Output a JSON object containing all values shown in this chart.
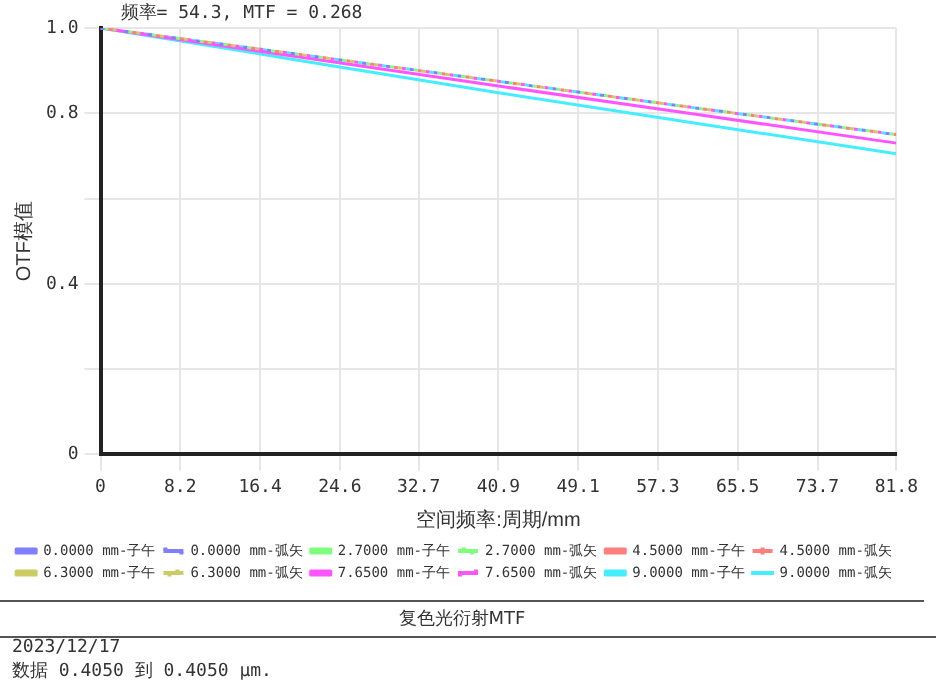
{
  "chart_data": {
    "type": "line",
    "title": "复色光衍射MTF",
    "xlabel": "空间频率:周期/mm",
    "ylabel": "OTF模值",
    "annotations": [
      "频率= 54.3, MTF = 0.268",
      "2023/12/17",
      "数据 0.4050 到 0.4050 µm."
    ],
    "x": [
      0,
      20.45,
      40.9,
      61.35,
      81.8
    ],
    "xlim": [
      0,
      81.8
    ],
    "xticks": [
      0,
      8.2,
      16.4,
      24.6,
      32.7,
      40.9,
      49.1,
      57.3,
      65.5,
      73.7,
      81.8
    ],
    "ylim": [
      0,
      1
    ],
    "yticks": [
      0,
      {
        "value": 0.2,
        "label": null
      },
      0.4,
      {
        "value": 0.6,
        "label": null
      },
      0.8,
      {
        "value": 1,
        "label": "1.0"
      }
    ],
    "grid": true,
    "legend": "bottom",
    "marker": "none",
    "series": [
      {
        "name": "0.0000 mm-子午",
        "color": "#7f7fff",
        "line_style": "solid",
        "values": [
          null,
          null,
          null,
          null,
          null
        ]
      },
      {
        "name": "0.0000 mm-弧矢",
        "color": "#7f7fff",
        "line_style": "dotted",
        "values": [
          1,
          0.938,
          0.875,
          0.812,
          0.75
        ]
      },
      {
        "name": "2.7000 mm-子午",
        "color": "#7fff7f",
        "line_style": "solid",
        "values": [
          null,
          null,
          null,
          null,
          null
        ]
      },
      {
        "name": "2.7000 mm-弧矢",
        "color": "#7fff7f",
        "line_style": "dotted",
        "values": [
          1,
          0.938,
          0.875,
          0.812,
          0.75
        ]
      },
      {
        "name": "4.5000 mm-子午",
        "color": "#ff7f7f",
        "line_style": "solid",
        "values": [
          null,
          null,
          null,
          null,
          null
        ]
      },
      {
        "name": "4.5000 mm-弧矢",
        "color": "#ff7f7f",
        "line_style": "dotted",
        "values": [
          1,
          0.938,
          0.875,
          0.812,
          0.75
        ]
      },
      {
        "name": "6.3000 mm-子午",
        "color": "#cccc66",
        "line_style": "solid",
        "values": [
          null,
          null,
          null,
          null,
          null
        ]
      },
      {
        "name": "6.3000 mm-弧矢",
        "color": "#cccc66",
        "line_style": "dotted",
        "values": [
          1,
          0.938,
          0.875,
          0.812,
          0.75
        ]
      },
      {
        "name": "7.6500 mm-子午",
        "color": "#ff55ff",
        "line_style": "solid",
        "values": [
          1,
          0.932,
          0.864,
          0.797,
          0.73
        ]
      },
      {
        "name": "7.6500 mm-弧矢",
        "color": "#ff55ff",
        "line_style": "dotted",
        "values": [
          1,
          0.938,
          0.875,
          0.812,
          0.75
        ]
      },
      {
        "name": "9.0000 mm-子午",
        "color": "#44eeff",
        "line_style": "solid",
        "values": [
          1,
          0.924,
          0.848,
          0.776,
          0.705
        ]
      },
      {
        "name": "9.0000 mm-弧矢",
        "color": "#44eeff",
        "line_style": "dotted",
        "values": [
          1,
          0.938,
          0.875,
          0.812,
          0.75
        ]
      }
    ]
  }
}
